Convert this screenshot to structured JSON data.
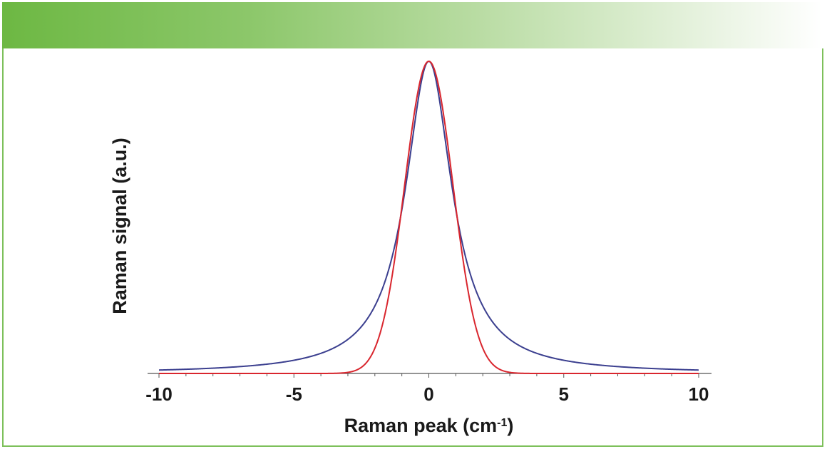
{
  "colors": {
    "header_start": "#6db843",
    "frame_border": "#7dc05a",
    "lorentzian_color": "#3b3f8f",
    "gaussian_color": "#d9262e",
    "axis_color": "#555555"
  },
  "chart_data": {
    "type": "line",
    "title": "",
    "xlabel_main": "Raman peak (cm",
    "xlabel_sup": "-1",
    "xlabel_end": ")",
    "ylabel": "Raman signal (a.u.)",
    "xlim": [
      -10,
      10
    ],
    "ylim": [
      0,
      1
    ],
    "x_ticks": [
      -10,
      -5,
      0,
      5,
      10
    ],
    "x_tick_labels": [
      "-10",
      "-5",
      "0",
      "5",
      "10"
    ],
    "minor_tick_step": 1,
    "grid": false,
    "legend": "none",
    "series": [
      {
        "shape": "lorentzian",
        "center": 0,
        "fwhm": 2.1,
        "amplitude": 1,
        "color": "#3b3f8f"
      },
      {
        "shape": "gaussian",
        "center": 0,
        "fwhm": 2.1,
        "amplitude": 1,
        "color": "#d9262e"
      }
    ]
  }
}
